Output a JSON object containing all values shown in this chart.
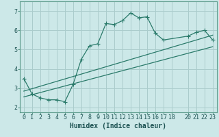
{
  "xlabel": "Humidex (Indice chaleur)",
  "bg_color": "#cce8e8",
  "grid_color": "#aacccc",
  "line_color": "#2a7a6a",
  "xlim": [
    -0.5,
    23.5
  ],
  "ylim": [
    1.75,
    7.5
  ],
  "xticks": [
    0,
    1,
    2,
    3,
    4,
    5,
    6,
    7,
    8,
    9,
    10,
    11,
    12,
    13,
    14,
    15,
    16,
    17,
    18,
    20,
    21,
    22,
    23
  ],
  "yticks": [
    2,
    3,
    4,
    5,
    6,
    7
  ],
  "curve1_x": [
    0,
    1,
    2,
    3,
    4,
    5,
    6,
    7,
    8,
    9,
    10,
    11,
    12,
    13,
    14,
    15,
    16,
    17,
    20,
    21,
    22,
    23
  ],
  "curve1_y": [
    3.5,
    2.7,
    2.5,
    2.4,
    2.4,
    2.3,
    3.2,
    4.5,
    5.2,
    5.3,
    6.35,
    6.3,
    6.5,
    6.9,
    6.65,
    6.7,
    5.85,
    5.5,
    5.7,
    5.9,
    6.0,
    5.5
  ],
  "line1_x": [
    0,
    23
  ],
  "line1_y": [
    2.55,
    5.15
  ],
  "line2_x": [
    0,
    23
  ],
  "line2_y": [
    2.85,
    5.75
  ],
  "xlabel_fontsize": 7,
  "tick_fontsize": 6,
  "marker_size": 2.5
}
